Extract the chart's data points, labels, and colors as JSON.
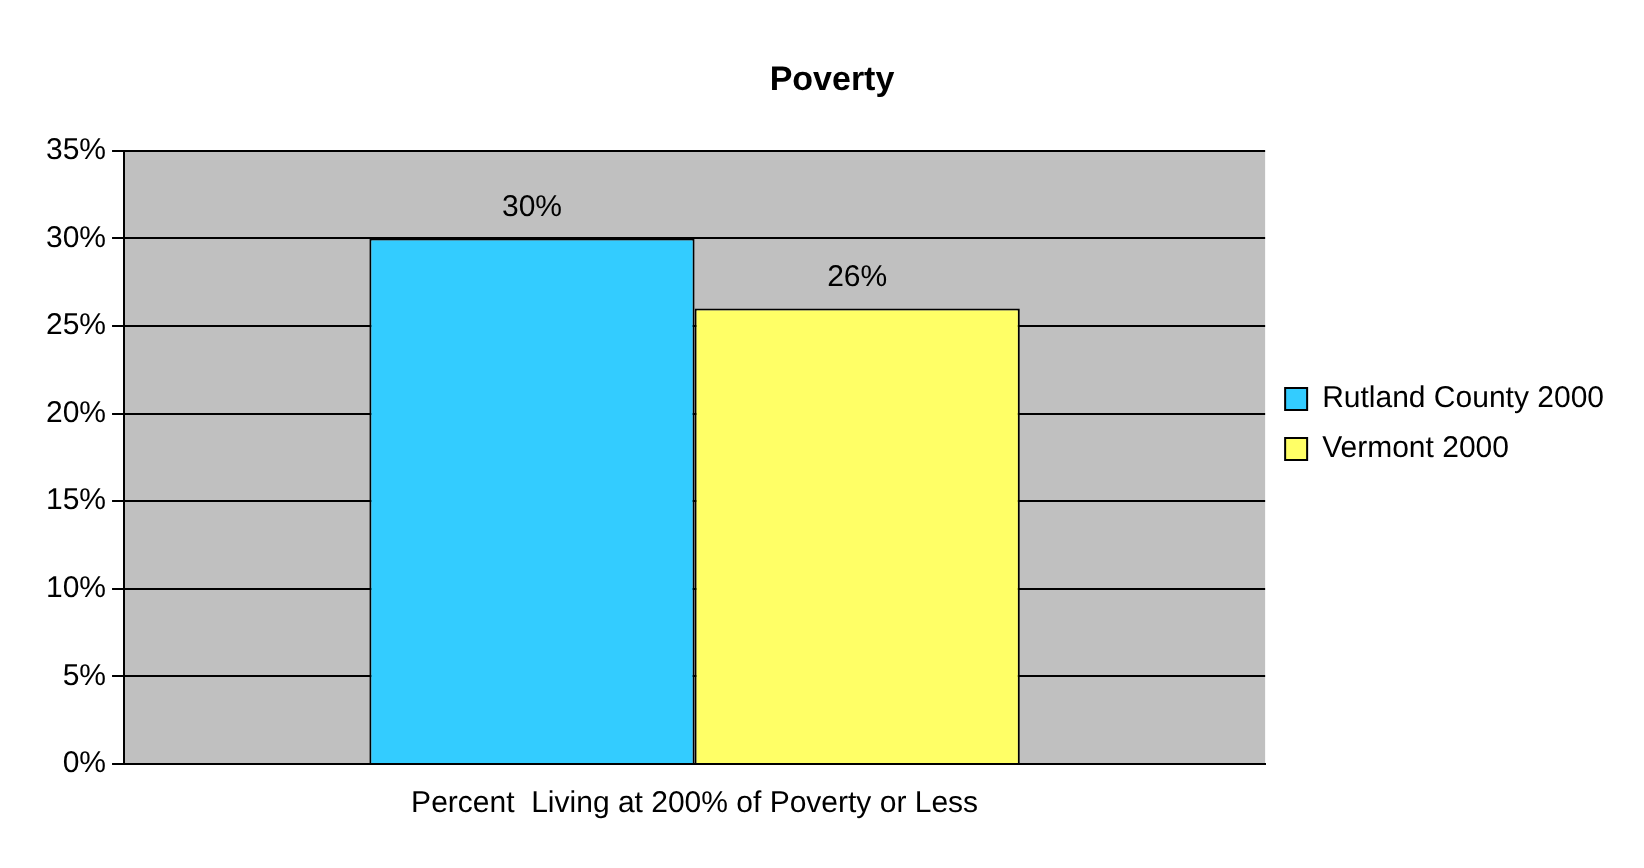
{
  "chart_data": {
    "type": "bar",
    "title": "Poverty",
    "categories": [
      "Percent  Living at 200% of Poverty or Less"
    ],
    "series": [
      {
        "name": "Rutland County 2000",
        "color": "#33ccff",
        "values": [
          30
        ],
        "value_labels": [
          "30%"
        ]
      },
      {
        "name": "Vermont 2000",
        "color": "#ffff66",
        "values": [
          26
        ],
        "value_labels": [
          "26%"
        ]
      }
    ],
    "ylim": [
      0,
      35
    ],
    "yticks": [
      {
        "value": 0,
        "label": "0%"
      },
      {
        "value": 5,
        "label": "5%"
      },
      {
        "value": 10,
        "label": "10%"
      },
      {
        "value": 15,
        "label": "15%"
      },
      {
        "value": 20,
        "label": "20%"
      },
      {
        "value": 25,
        "label": "25%"
      },
      {
        "value": 30,
        "label": "30%"
      },
      {
        "value": 35,
        "label": "35%"
      }
    ],
    "grid": "y",
    "legend": "right"
  }
}
